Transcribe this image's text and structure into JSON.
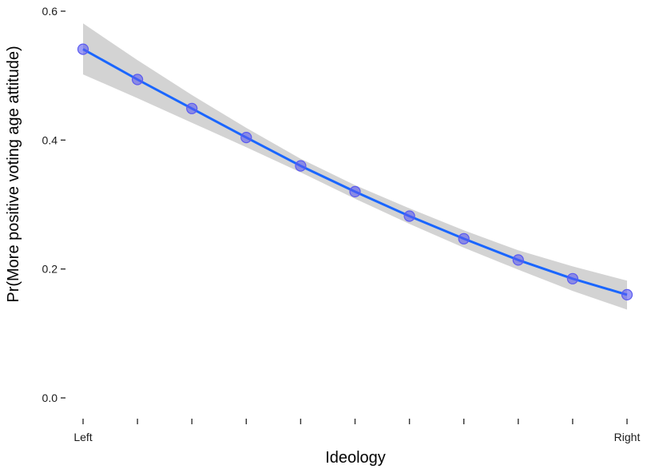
{
  "chart_data": {
    "type": "line",
    "title": "",
    "xlabel": "Ideology",
    "ylabel": "Pr(More positive voting age attitude)",
    "x_tick_labels": [
      "Left",
      "",
      "",
      "",
      "",
      "",
      "",
      "",
      "",
      "",
      "Right"
    ],
    "x": [
      0,
      1,
      2,
      3,
      4,
      5,
      6,
      7,
      8,
      9,
      10
    ],
    "xlim": [
      0,
      10
    ],
    "y_ticks": [
      0.0,
      0.2,
      0.4,
      0.6
    ],
    "y_tick_labels": [
      "0.0",
      "0.2",
      "0.4",
      "0.6"
    ],
    "ylim": [
      0.0,
      0.6
    ],
    "grid": false,
    "series": [
      {
        "values": [
          0.541,
          0.494,
          0.449,
          0.404,
          0.36,
          0.32,
          0.282,
          0.247,
          0.214,
          0.185,
          0.16
        ],
        "lower": [
          0.502,
          0.465,
          0.427,
          0.389,
          0.35,
          0.309,
          0.27,
          0.233,
          0.199,
          0.166,
          0.137
        ],
        "upper": [
          0.581,
          0.524,
          0.47,
          0.419,
          0.371,
          0.33,
          0.294,
          0.26,
          0.229,
          0.204,
          0.182
        ],
        "line_color": "#1a66ff",
        "point_color": "#5a5af0",
        "ribbon_color": "#d3d3d3"
      }
    ]
  }
}
